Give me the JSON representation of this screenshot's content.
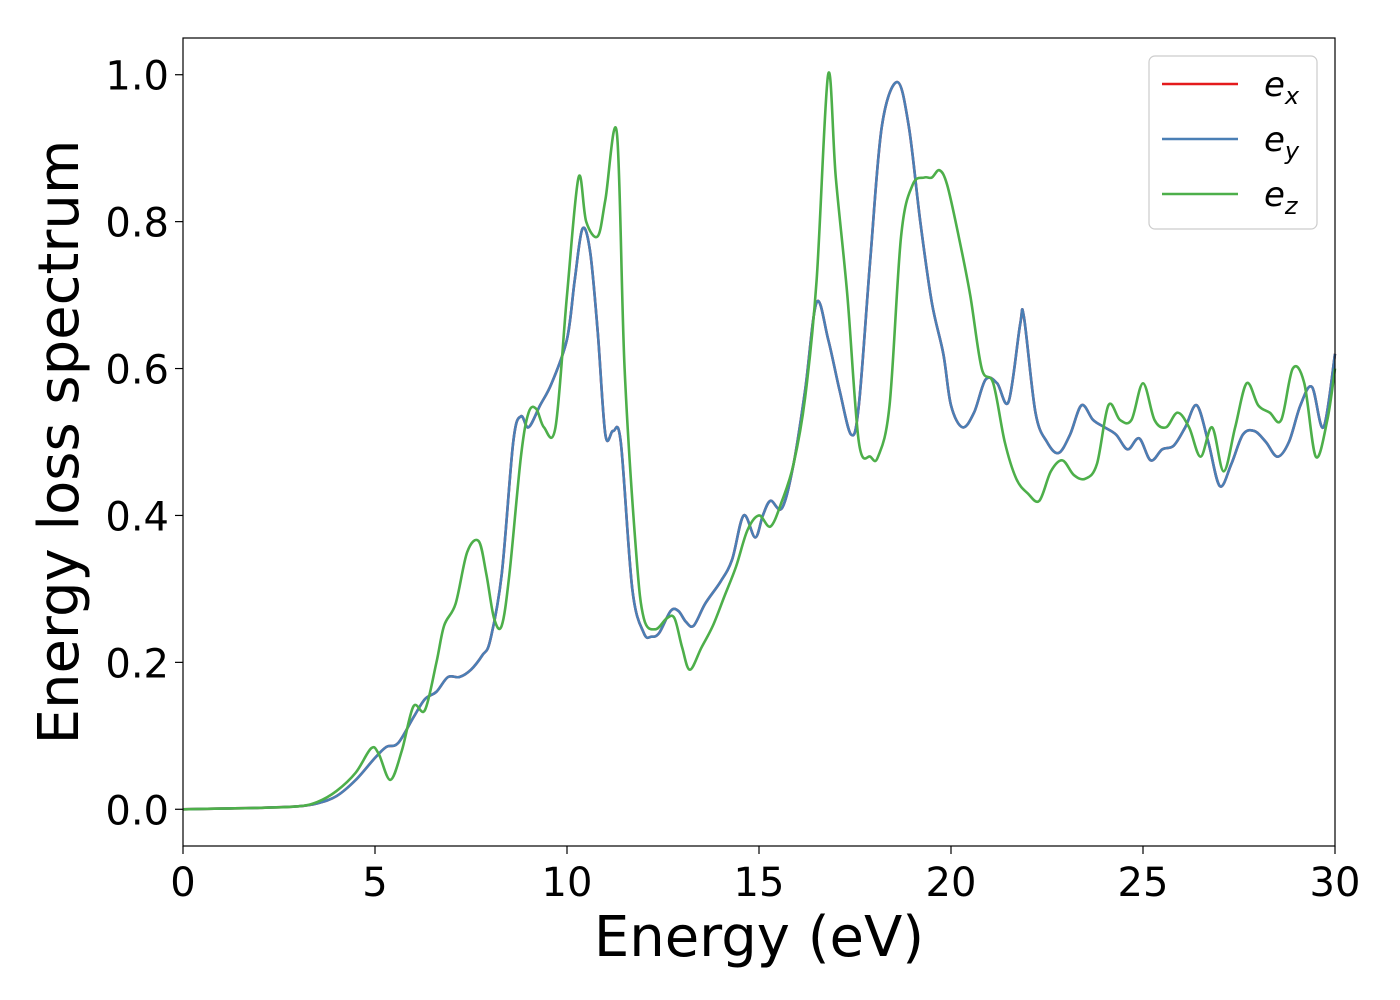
{
  "chart_data": {
    "type": "line",
    "xlabel": "Energy (eV)",
    "ylabel": "Energy loss spectrum",
    "xlim": [
      0,
      30
    ],
    "ylim": [
      -0.05,
      1.05
    ],
    "xticks": [
      "0",
      "5",
      "10",
      "15",
      "20",
      "25",
      "30"
    ],
    "yticks": [
      "0.0",
      "0.2",
      "0.4",
      "0.6",
      "0.8",
      "1.0"
    ],
    "grid": false,
    "legend_position": "top-right",
    "series": [
      {
        "name": "e",
        "subscript": "x",
        "color": "#e41a1c",
        "x": [
          0,
          1,
          2,
          3,
          3.5,
          4,
          4.5,
          5,
          5.3,
          5.6,
          6,
          6.3,
          6.6,
          6.9,
          7.2,
          7.5,
          7.8,
          8.0,
          8.3,
          8.6,
          8.8,
          9.0,
          9.3,
          9.6,
          10.0,
          10.2,
          10.4,
          10.6,
          10.8,
          11.0,
          11.2,
          11.4,
          11.7,
          12.0,
          12.2,
          12.4,
          12.7,
          12.9,
          13.1,
          13.3,
          13.6,
          14.0,
          14.3,
          14.6,
          14.9,
          15.1,
          15.3,
          15.6,
          15.9,
          16.2,
          16.5,
          16.8,
          17.1,
          17.4,
          17.6,
          17.9,
          18.2,
          18.6,
          18.9,
          19.2,
          19.5,
          19.8,
          20.0,
          20.3,
          20.6,
          20.9,
          21.2,
          21.5,
          21.8,
          21.9,
          22.2,
          22.5,
          22.8,
          23.1,
          23.4,
          23.7,
          24.0,
          24.3,
          24.6,
          24.9,
          25.2,
          25.5,
          25.8,
          26.1,
          26.4,
          26.7,
          27.0,
          27.3,
          27.6,
          27.9,
          28.2,
          28.5,
          28.8,
          29.1,
          29.4,
          29.7,
          30.0
        ],
        "values": [
          0.0,
          0.001,
          0.002,
          0.004,
          0.008,
          0.018,
          0.04,
          0.07,
          0.085,
          0.09,
          0.125,
          0.15,
          0.16,
          0.18,
          0.18,
          0.19,
          0.21,
          0.23,
          0.32,
          0.5,
          0.535,
          0.52,
          0.55,
          0.58,
          0.64,
          0.72,
          0.79,
          0.76,
          0.65,
          0.51,
          0.515,
          0.5,
          0.3,
          0.24,
          0.235,
          0.24,
          0.27,
          0.27,
          0.255,
          0.25,
          0.28,
          0.31,
          0.34,
          0.4,
          0.37,
          0.4,
          0.42,
          0.41,
          0.47,
          0.57,
          0.69,
          0.64,
          0.57,
          0.51,
          0.55,
          0.75,
          0.93,
          0.99,
          0.93,
          0.8,
          0.69,
          0.62,
          0.55,
          0.52,
          0.54,
          0.585,
          0.58,
          0.555,
          0.66,
          0.67,
          0.54,
          0.5,
          0.485,
          0.51,
          0.55,
          0.53,
          0.52,
          0.51,
          0.49,
          0.505,
          0.475,
          0.49,
          0.495,
          0.52,
          0.55,
          0.5,
          0.44,
          0.47,
          0.51,
          0.515,
          0.5,
          0.48,
          0.5,
          0.55,
          0.575,
          0.52,
          0.62
        ]
      },
      {
        "name": "e",
        "subscript": "y",
        "color": "#4a7fb5",
        "x": [
          0,
          1,
          2,
          3,
          3.5,
          4,
          4.5,
          5,
          5.3,
          5.6,
          6,
          6.3,
          6.6,
          6.9,
          7.2,
          7.5,
          7.8,
          8.0,
          8.3,
          8.6,
          8.8,
          9.0,
          9.3,
          9.6,
          10.0,
          10.2,
          10.4,
          10.6,
          10.8,
          11.0,
          11.2,
          11.4,
          11.7,
          12.0,
          12.2,
          12.4,
          12.7,
          12.9,
          13.1,
          13.3,
          13.6,
          14.0,
          14.3,
          14.6,
          14.9,
          15.1,
          15.3,
          15.6,
          15.9,
          16.2,
          16.5,
          16.8,
          17.1,
          17.4,
          17.6,
          17.9,
          18.2,
          18.6,
          18.9,
          19.2,
          19.5,
          19.8,
          20.0,
          20.3,
          20.6,
          20.9,
          21.2,
          21.5,
          21.8,
          21.9,
          22.2,
          22.5,
          22.8,
          23.1,
          23.4,
          23.7,
          24.0,
          24.3,
          24.6,
          24.9,
          25.2,
          25.5,
          25.8,
          26.1,
          26.4,
          26.7,
          27.0,
          27.3,
          27.6,
          27.9,
          28.2,
          28.5,
          28.8,
          29.1,
          29.4,
          29.7,
          30.0
        ],
        "values": [
          0.0,
          0.001,
          0.002,
          0.004,
          0.008,
          0.018,
          0.04,
          0.07,
          0.085,
          0.09,
          0.125,
          0.15,
          0.16,
          0.18,
          0.18,
          0.19,
          0.21,
          0.23,
          0.32,
          0.5,
          0.535,
          0.52,
          0.55,
          0.58,
          0.64,
          0.72,
          0.79,
          0.76,
          0.65,
          0.51,
          0.515,
          0.5,
          0.3,
          0.24,
          0.235,
          0.24,
          0.27,
          0.27,
          0.255,
          0.25,
          0.28,
          0.31,
          0.34,
          0.4,
          0.37,
          0.4,
          0.42,
          0.41,
          0.47,
          0.57,
          0.69,
          0.64,
          0.57,
          0.51,
          0.55,
          0.75,
          0.93,
          0.99,
          0.93,
          0.8,
          0.69,
          0.62,
          0.55,
          0.52,
          0.54,
          0.585,
          0.58,
          0.555,
          0.66,
          0.67,
          0.54,
          0.5,
          0.485,
          0.51,
          0.55,
          0.53,
          0.52,
          0.51,
          0.49,
          0.505,
          0.475,
          0.49,
          0.495,
          0.52,
          0.55,
          0.5,
          0.44,
          0.47,
          0.51,
          0.515,
          0.5,
          0.48,
          0.5,
          0.55,
          0.575,
          0.52,
          0.62
        ]
      },
      {
        "name": "e",
        "subscript": "z",
        "color": "#4daf4a",
        "x": [
          0,
          1,
          2,
          3,
          3.5,
          4,
          4.5,
          4.9,
          5.1,
          5.4,
          5.7,
          6.0,
          6.3,
          6.6,
          6.8,
          7.1,
          7.4,
          7.7,
          7.9,
          8.1,
          8.3,
          8.5,
          8.8,
          9.0,
          9.2,
          9.4,
          9.7,
          10.0,
          10.3,
          10.5,
          10.8,
          11.0,
          11.3,
          11.5,
          11.8,
          12.0,
          12.3,
          12.6,
          12.8,
          13.0,
          13.2,
          13.5,
          13.8,
          14.1,
          14.4,
          14.7,
          15.0,
          15.3,
          15.6,
          15.9,
          16.2,
          16.5,
          16.8,
          17.0,
          17.3,
          17.6,
          17.9,
          18.1,
          18.4,
          18.7,
          19.0,
          19.3,
          19.5,
          19.7,
          19.9,
          20.2,
          20.5,
          20.8,
          21.1,
          21.4,
          21.7,
          22.0,
          22.3,
          22.6,
          22.9,
          23.2,
          23.5,
          23.8,
          24.1,
          24.4,
          24.7,
          25.0,
          25.3,
          25.6,
          25.9,
          26.2,
          26.5,
          26.8,
          27.1,
          27.4,
          27.7,
          28.0,
          28.3,
          28.6,
          28.9,
          29.2,
          29.5,
          29.8,
          30.0
        ],
        "values": [
          0.0,
          0.001,
          0.002,
          0.004,
          0.01,
          0.025,
          0.05,
          0.083,
          0.075,
          0.04,
          0.08,
          0.14,
          0.135,
          0.2,
          0.25,
          0.28,
          0.35,
          0.365,
          0.32,
          0.26,
          0.25,
          0.32,
          0.48,
          0.54,
          0.545,
          0.52,
          0.52,
          0.7,
          0.86,
          0.8,
          0.78,
          0.83,
          0.92,
          0.6,
          0.35,
          0.26,
          0.245,
          0.26,
          0.26,
          0.22,
          0.19,
          0.22,
          0.25,
          0.29,
          0.33,
          0.38,
          0.4,
          0.385,
          0.42,
          0.47,
          0.56,
          0.72,
          1.0,
          0.86,
          0.7,
          0.5,
          0.48,
          0.48,
          0.55,
          0.78,
          0.85,
          0.86,
          0.86,
          0.87,
          0.85,
          0.78,
          0.7,
          0.6,
          0.58,
          0.5,
          0.45,
          0.43,
          0.42,
          0.46,
          0.475,
          0.455,
          0.45,
          0.47,
          0.55,
          0.53,
          0.53,
          0.58,
          0.53,
          0.52,
          0.54,
          0.52,
          0.48,
          0.52,
          0.46,
          0.52,
          0.58,
          0.55,
          0.54,
          0.53,
          0.6,
          0.58,
          0.48,
          0.53,
          0.6
        ]
      }
    ]
  }
}
